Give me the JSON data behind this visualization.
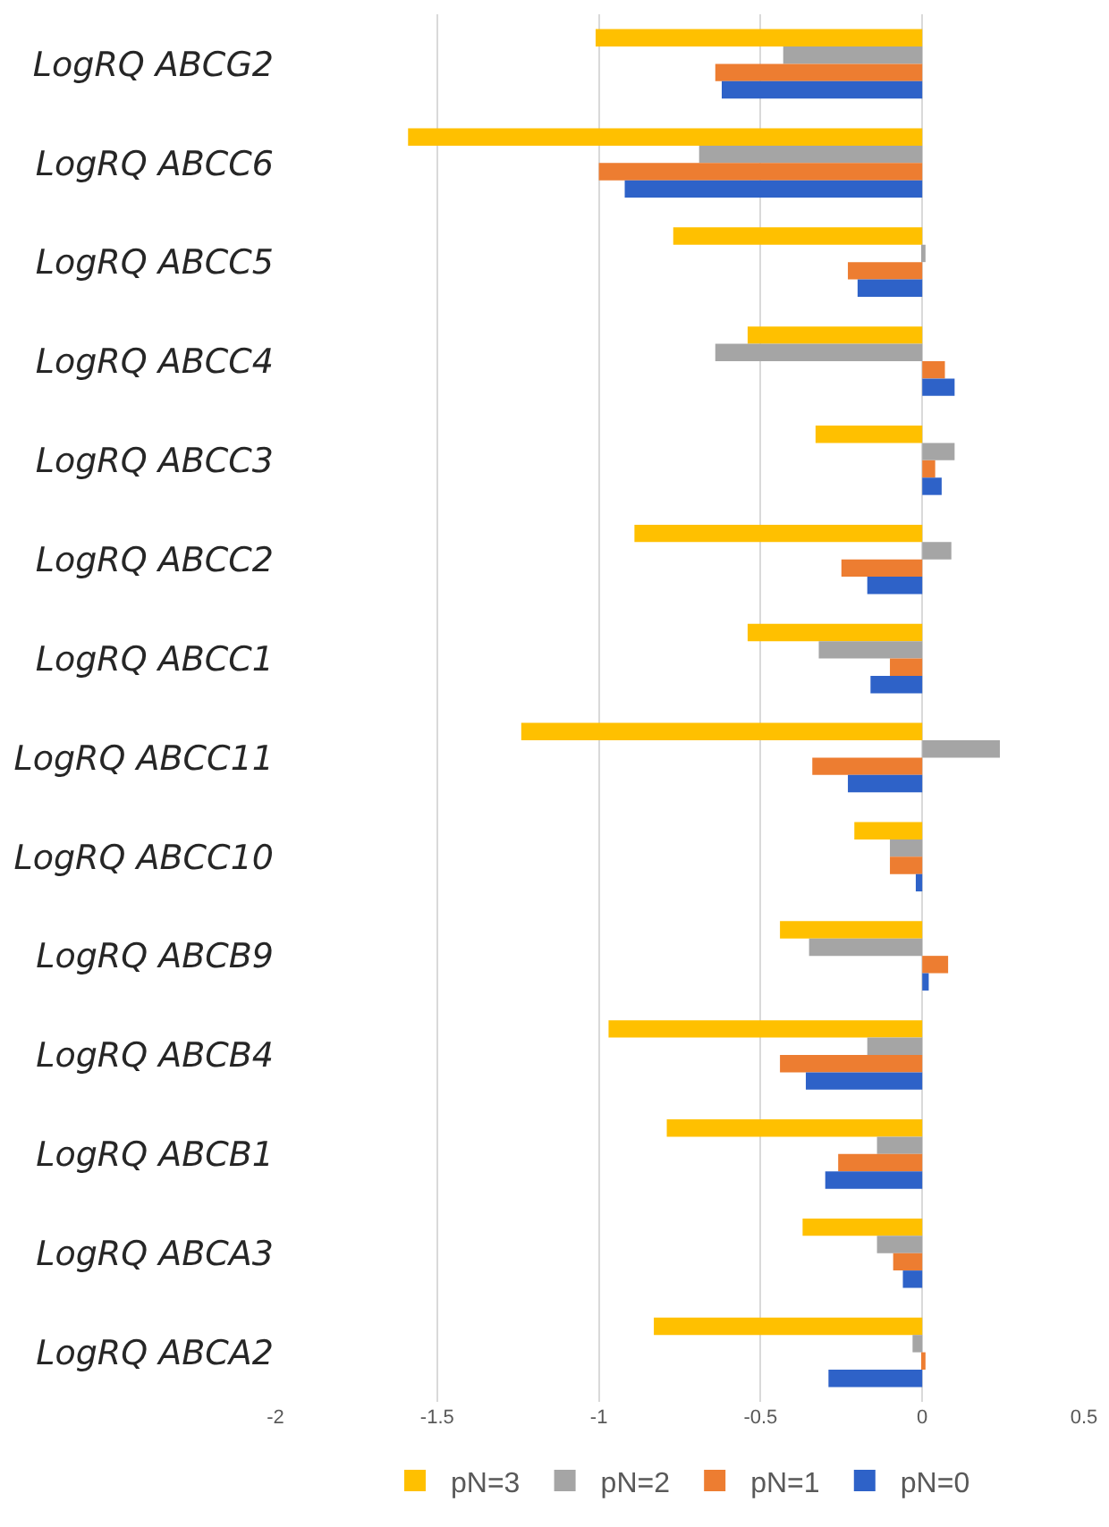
{
  "chart_data": {
    "type": "bar",
    "orientation": "horizontal",
    "categories": [
      "LogRQ ABCG2",
      "LogRQ ABCC6",
      "LogRQ ABCC5",
      "LogRQ ABCC4",
      "LogRQ ABCC3",
      "LogRQ ABCC2",
      "LogRQ ABCC1",
      "LogRQ ABCC11",
      "LogRQ ABCC10",
      "LogRQ ABCB9",
      "LogRQ ABCB4",
      "LogRQ ABCB1",
      "LogRQ ABCA3",
      "LogRQ ABCA2"
    ],
    "series": [
      {
        "name": "pN=3",
        "color": "#ffc000",
        "values": [
          -1.01,
          -1.59,
          -0.77,
          -0.54,
          -0.33,
          -0.89,
          -0.54,
          -1.24,
          -0.21,
          -0.44,
          -0.97,
          -0.79,
          -0.37,
          -0.83
        ]
      },
      {
        "name": "pN=2",
        "color": "#a5a5a5",
        "values": [
          -0.43,
          -0.69,
          0.01,
          -0.64,
          0.1,
          0.09,
          -0.32,
          0.24,
          -0.1,
          -0.35,
          -0.17,
          -0.14,
          -0.14,
          -0.03
        ]
      },
      {
        "name": "pN=1",
        "color": "#ed7d31",
        "values": [
          -0.64,
          -1.0,
          -0.23,
          0.07,
          0.04,
          -0.25,
          -0.1,
          -0.34,
          -0.1,
          0.08,
          -0.44,
          -0.26,
          -0.09,
          0.01
        ]
      },
      {
        "name": "pN=0",
        "color": "#2e62c8",
        "values": [
          -0.62,
          -0.92,
          -0.2,
          0.1,
          0.06,
          -0.17,
          -0.16,
          -0.23,
          -0.02,
          0.02,
          -0.36,
          -0.3,
          -0.06,
          -0.29
        ]
      }
    ],
    "xlim": [
      -2,
      0.5
    ],
    "xticks": [
      -2,
      -1.5,
      -1,
      -0.5,
      0,
      0.5
    ],
    "grid": "x",
    "legend": "bottom"
  }
}
